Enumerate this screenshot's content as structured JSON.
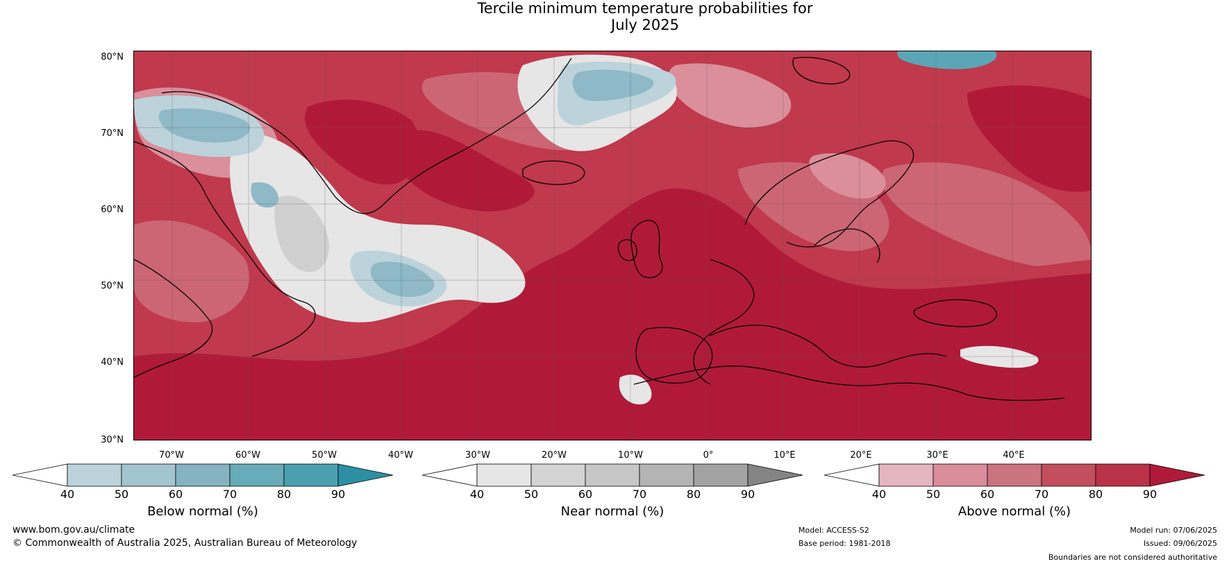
{
  "title_line1": "Tercile minimum temperature probabilities for",
  "title_line2": "July 2025",
  "lat_labels": [
    "80°N",
    "70°N",
    "60°N",
    "50°N",
    "40°N",
    "30°N"
  ],
  "lon_labels": [
    "70°W",
    "60°W",
    "50°W",
    "40°W",
    "30°W",
    "20°W",
    "10°W",
    "0°",
    "10°E",
    "20°E",
    "30°E",
    "40°E"
  ],
  "colorbars": [
    {
      "label": "Below normal (%)",
      "ticks": [
        "40",
        "50",
        "60",
        "70",
        "80",
        "90"
      ],
      "colors": [
        "#ffffff",
        "#bcd3db",
        "#a3c5cf",
        "#85b3c2",
        "#68abb9",
        "#4aa0b1",
        "#2c8fa4"
      ]
    },
    {
      "label": "Near normal (%)",
      "ticks": [
        "40",
        "50",
        "60",
        "70",
        "80",
        "90"
      ],
      "colors": [
        "#ffffff",
        "#e6e6e6",
        "#d4d4d4",
        "#c6c6c6",
        "#b4b4b4",
        "#a2a2a2",
        "#848484"
      ]
    },
    {
      "label": "Above normal (%)",
      "ticks": [
        "40",
        "50",
        "60",
        "70",
        "80",
        "90"
      ],
      "colors": [
        "#ffffff",
        "#e5b6c0",
        "#d88d99",
        "#cc7380",
        "#c24e5e",
        "#b93247",
        "#b01a38"
      ]
    }
  ],
  "footer": {
    "website": "www.bom.gov.au/climate",
    "copyright": "© Commonwealth of Australia 2025, Australian Bureau of Meteorology",
    "model": "Model: ACCESS-S2",
    "base_period": "Base period: 1981-2018",
    "model_run": "Model run: 07/06/2025",
    "issued": "Issued: 09/06/2025",
    "disclaimer": "Boundaries are not considered authoritative"
  },
  "map_colors": {
    "ocean_above": "#c0394c",
    "strong_above": "#b01a38",
    "medium_above": "#cc6674",
    "light_above": "#da8f9b",
    "near_light": "#e6e6e6",
    "near_medium": "#d0d0d0",
    "below_light": "#bcd3db",
    "below_medium": "#8fb9c6",
    "below_strong": "#5aa6b6"
  }
}
